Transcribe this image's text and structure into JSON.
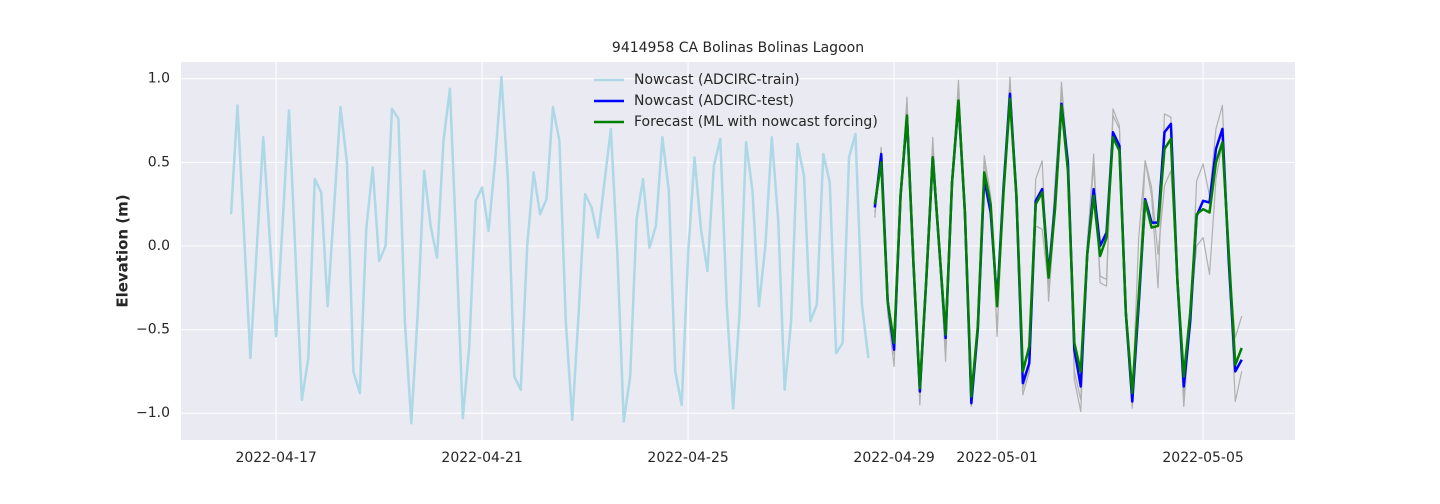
{
  "chart_data": {
    "type": "line",
    "title": "9414958 CA Bolinas Bolinas Lagoon",
    "y_label": "Elevation (m)",
    "x": [
      "2022-04-16 03:00",
      "2022-04-16 06:00",
      "2022-04-16 09:00",
      "2022-04-16 12:00",
      "2022-04-16 15:00",
      "2022-04-16 18:00",
      "2022-04-16 21:00",
      "2022-04-17 00:00",
      "2022-04-17 03:00",
      "2022-04-17 06:00",
      "2022-04-17 09:00",
      "2022-04-17 12:00",
      "2022-04-17 15:00",
      "2022-04-17 18:00",
      "2022-04-17 21:00",
      "2022-04-18 00:00",
      "2022-04-18 03:00",
      "2022-04-18 06:00",
      "2022-04-18 09:00",
      "2022-04-18 12:00",
      "2022-04-18 15:00",
      "2022-04-18 18:00",
      "2022-04-18 21:00",
      "2022-04-19 00:00",
      "2022-04-19 03:00",
      "2022-04-19 06:00",
      "2022-04-19 09:00",
      "2022-04-19 12:00",
      "2022-04-19 15:00",
      "2022-04-19 18:00",
      "2022-04-19 21:00",
      "2022-04-20 00:00",
      "2022-04-20 03:00",
      "2022-04-20 06:00",
      "2022-04-20 09:00",
      "2022-04-20 12:00",
      "2022-04-20 15:00",
      "2022-04-20 18:00",
      "2022-04-20 21:00",
      "2022-04-21 00:00",
      "2022-04-21 03:00",
      "2022-04-21 06:00",
      "2022-04-21 09:00",
      "2022-04-21 12:00",
      "2022-04-21 15:00",
      "2022-04-21 18:00",
      "2022-04-21 21:00",
      "2022-04-22 00:00",
      "2022-04-22 03:00",
      "2022-04-22 06:00",
      "2022-04-22 09:00",
      "2022-04-22 12:00",
      "2022-04-22 15:00",
      "2022-04-22 18:00",
      "2022-04-22 21:00",
      "2022-04-23 00:00",
      "2022-04-23 03:00",
      "2022-04-23 06:00",
      "2022-04-23 09:00",
      "2022-04-23 12:00",
      "2022-04-23 15:00",
      "2022-04-23 18:00",
      "2022-04-23 21:00",
      "2022-04-24 00:00",
      "2022-04-24 03:00",
      "2022-04-24 06:00",
      "2022-04-24 09:00",
      "2022-04-24 12:00",
      "2022-04-24 15:00",
      "2022-04-24 18:00",
      "2022-04-24 21:00",
      "2022-04-25 00:00",
      "2022-04-25 03:00",
      "2022-04-25 06:00",
      "2022-04-25 09:00",
      "2022-04-25 12:00",
      "2022-04-25 15:00",
      "2022-04-25 18:00",
      "2022-04-25 21:00",
      "2022-04-26 00:00",
      "2022-04-26 03:00",
      "2022-04-26 06:00",
      "2022-04-26 09:00",
      "2022-04-26 12:00",
      "2022-04-26 15:00",
      "2022-04-26 18:00",
      "2022-04-26 21:00",
      "2022-04-27 00:00",
      "2022-04-27 03:00",
      "2022-04-27 06:00",
      "2022-04-27 09:00",
      "2022-04-27 12:00",
      "2022-04-27 15:00",
      "2022-04-27 18:00",
      "2022-04-27 21:00",
      "2022-04-28 00:00",
      "2022-04-28 03:00",
      "2022-04-28 06:00",
      "2022-04-28 09:00",
      "2022-04-28 12:00",
      "2022-04-28 15:00",
      "2022-04-28 18:00",
      "2022-04-28 21:00",
      "2022-04-29 00:00",
      "2022-04-29 03:00",
      "2022-04-29 06:00",
      "2022-04-29 09:00",
      "2022-04-29 12:00",
      "2022-04-29 15:00",
      "2022-04-29 18:00",
      "2022-04-29 21:00",
      "2022-04-30 00:00",
      "2022-04-30 03:00",
      "2022-04-30 06:00",
      "2022-04-30 09:00",
      "2022-04-30 12:00",
      "2022-04-30 15:00",
      "2022-04-30 18:00",
      "2022-04-30 21:00",
      "2022-05-01 00:00",
      "2022-05-01 03:00",
      "2022-05-01 06:00",
      "2022-05-01 09:00",
      "2022-05-01 12:00",
      "2022-05-01 15:00",
      "2022-05-01 18:00",
      "2022-05-01 21:00",
      "2022-05-02 00:00",
      "2022-05-02 03:00",
      "2022-05-02 06:00",
      "2022-05-02 09:00",
      "2022-05-02 12:00",
      "2022-05-02 15:00",
      "2022-05-02 18:00",
      "2022-05-02 21:00",
      "2022-05-03 00:00",
      "2022-05-03 03:00",
      "2022-05-03 06:00",
      "2022-05-03 09:00",
      "2022-05-03 12:00",
      "2022-05-03 15:00",
      "2022-05-03 18:00",
      "2022-05-03 21:00",
      "2022-05-04 00:00",
      "2022-05-04 03:00",
      "2022-05-04 06:00",
      "2022-05-04 09:00",
      "2022-05-04 12:00",
      "2022-05-04 15:00",
      "2022-05-04 18:00",
      "2022-05-04 21:00",
      "2022-05-05 00:00",
      "2022-05-05 03:00",
      "2022-05-05 06:00",
      "2022-05-05 09:00",
      "2022-05-05 12:00",
      "2022-05-05 15:00",
      "2022-05-05 18:00"
    ],
    "series": [
      {
        "color": "#b0b0b0",
        "values": [
          null,
          null,
          null,
          null,
          null,
          null,
          null,
          null,
          null,
          null,
          null,
          null,
          null,
          null,
          null,
          null,
          null,
          null,
          null,
          null,
          null,
          null,
          null,
          null,
          null,
          null,
          null,
          null,
          null,
          null,
          null,
          null,
          null,
          null,
          null,
          null,
          null,
          null,
          null,
          null,
          null,
          null,
          null,
          null,
          null,
          null,
          null,
          null,
          null,
          null,
          null,
          null,
          null,
          null,
          null,
          null,
          null,
          null,
          null,
          null,
          null,
          null,
          null,
          null,
          null,
          null,
          null,
          null,
          null,
          null,
          null,
          null,
          null,
          null,
          null,
          null,
          null,
          null,
          null,
          null,
          null,
          null,
          null,
          null,
          null,
          null,
          null,
          null,
          null,
          null,
          null,
          null,
          null,
          null,
          null,
          null,
          null,
          null,
          null,
          null,
          0.17,
          0.59,
          -0.4,
          -0.72,
          0.3,
          0.89,
          -0.1,
          -0.95,
          -0.2,
          0.65,
          0.0,
          -0.69,
          0.38,
          0.99,
          0.2,
          -0.96,
          -0.5,
          0.54,
          0.3,
          -0.54,
          0.35,
          1.01,
          0.3,
          -0.89,
          -0.75,
          0.4,
          0.51,
          -0.33,
          0.2,
          0.98,
          0.5,
          -0.8,
          -0.99,
          0.0,
          0.55,
          -0.22,
          -0.24,
          0.82,
          0.72,
          -0.45,
          -0.97,
          -0.3,
          0.51,
          0.3,
          -0.25,
          0.79,
          0.77,
          -0.2,
          -0.96,
          -0.45,
          0.39,
          0.49,
          0.3,
          0.7,
          0.84,
          -0.1,
          -0.93,
          -0.75
        ]
      },
      {
        "color": "#b0b0b0",
        "values": [
          null,
          null,
          null,
          null,
          null,
          null,
          null,
          null,
          null,
          null,
          null,
          null,
          null,
          null,
          null,
          null,
          null,
          null,
          null,
          null,
          null,
          null,
          null,
          null,
          null,
          null,
          null,
          null,
          null,
          null,
          null,
          null,
          null,
          null,
          null,
          null,
          null,
          null,
          null,
          null,
          null,
          null,
          null,
          null,
          null,
          null,
          null,
          null,
          null,
          null,
          null,
          null,
          null,
          null,
          null,
          null,
          null,
          null,
          null,
          null,
          null,
          null,
          null,
          null,
          null,
          null,
          null,
          null,
          null,
          null,
          null,
          null,
          null,
          null,
          null,
          null,
          null,
          null,
          null,
          null,
          null,
          null,
          null,
          null,
          null,
          null,
          null,
          null,
          null,
          null,
          null,
          null,
          null,
          null,
          null,
          null,
          null,
          null,
          null,
          null,
          0.2,
          0.5,
          -0.3,
          -0.65,
          0.28,
          0.85,
          -0.12,
          -0.9,
          -0.22,
          0.6,
          0.02,
          -0.65,
          0.35,
          0.95,
          0.18,
          -0.92,
          -0.48,
          0.5,
          0.28,
          -0.5,
          0.33,
          0.97,
          0.28,
          -0.85,
          -0.72,
          0.12,
          0.1,
          -0.25,
          0.38,
          0.92,
          0.48,
          -0.75,
          -0.92,
          0.02,
          0.48,
          -0.18,
          -0.2,
          0.78,
          0.7,
          -0.42,
          -0.92,
          0.05,
          0.51,
          0.35,
          -0.05,
          0.36,
          0.45,
          -0.18,
          -0.9,
          -0.4,
          0.0,
          0.05,
          -0.17,
          0.4,
          0.62,
          -0.08,
          -0.55,
          -0.42
        ]
      },
      {
        "name": "Nowcast (ADCIRC-train)",
        "color": "#add8e6",
        "values": [
          0.19,
          0.84,
          0.08,
          -0.67,
          -0.01,
          0.65,
          0.05,
          -0.54,
          0.13,
          0.81,
          -0.05,
          -0.92,
          -0.67,
          0.4,
          0.32,
          -0.36,
          0.23,
          0.83,
          0.5,
          -0.75,
          -0.88,
          0.1,
          0.47,
          -0.09,
          0.0,
          0.82,
          0.76,
          -0.45,
          -1.06,
          -0.4,
          0.45,
          0.12,
          -0.07,
          0.63,
          0.94,
          0.0,
          -1.03,
          -0.6,
          0.27,
          0.35,
          0.09,
          0.5,
          1.01,
          0.4,
          -0.78,
          -0.86,
          0.0,
          0.44,
          0.19,
          0.28,
          0.83,
          0.63,
          -0.45,
          -1.04,
          -0.4,
          0.31,
          0.23,
          0.05,
          0.38,
          0.7,
          -0.04,
          -1.05,
          -0.78,
          0.16,
          0.4,
          -0.01,
          0.12,
          0.65,
          0.33,
          -0.75,
          -0.95,
          -0.05,
          0.53,
          0.1,
          -0.15,
          0.48,
          0.64,
          -0.35,
          -0.97,
          -0.4,
          0.62,
          0.33,
          -0.36,
          0.0,
          0.65,
          0.15,
          -0.86,
          -0.45,
          0.61,
          0.42,
          -0.45,
          -0.35,
          0.55,
          0.38,
          -0.64,
          -0.58,
          0.53,
          0.67,
          -0.35,
          -0.67,
          null,
          null,
          null,
          null,
          null,
          null,
          null,
          null,
          null,
          null,
          null,
          null,
          null,
          null,
          null,
          null,
          null,
          null,
          null,
          null,
          null,
          null,
          null,
          null,
          null,
          null,
          null,
          null,
          null,
          null,
          null,
          null,
          null,
          null,
          null,
          null,
          null,
          null,
          null,
          null,
          null,
          null,
          null,
          null,
          null,
          null,
          null,
          null,
          null,
          null,
          null,
          null,
          null,
          null,
          null,
          null,
          null,
          null
        ]
      },
      {
        "name": "Nowcast (ADCIRC-test)",
        "color": "#0000ff",
        "values": [
          null,
          null,
          null,
          null,
          null,
          null,
          null,
          null,
          null,
          null,
          null,
          null,
          null,
          null,
          null,
          null,
          null,
          null,
          null,
          null,
          null,
          null,
          null,
          null,
          null,
          null,
          null,
          null,
          null,
          null,
          null,
          null,
          null,
          null,
          null,
          null,
          null,
          null,
          null,
          null,
          null,
          null,
          null,
          null,
          null,
          null,
          null,
          null,
          null,
          null,
          null,
          null,
          null,
          null,
          null,
          null,
          null,
          null,
          null,
          null,
          null,
          null,
          null,
          null,
          null,
          null,
          null,
          null,
          null,
          null,
          null,
          null,
          null,
          null,
          null,
          null,
          null,
          null,
          null,
          null,
          null,
          null,
          null,
          null,
          null,
          null,
          null,
          null,
          null,
          null,
          null,
          null,
          null,
          null,
          null,
          null,
          null,
          null,
          null,
          null,
          0.23,
          0.55,
          -0.33,
          -0.62,
          0.3,
          0.77,
          -0.1,
          -0.87,
          -0.2,
          0.53,
          0.0,
          -0.55,
          0.38,
          0.86,
          0.2,
          -0.94,
          -0.5,
          0.4,
          0.2,
          -0.33,
          0.35,
          0.91,
          0.3,
          -0.82,
          -0.7,
          0.27,
          0.34,
          -0.17,
          0.25,
          0.85,
          0.5,
          -0.62,
          -0.84,
          -0.05,
          0.34,
          0.0,
          0.08,
          0.68,
          0.6,
          -0.4,
          -0.93,
          -0.35,
          0.28,
          0.14,
          0.14,
          0.68,
          0.73,
          -0.2,
          -0.84,
          -0.45,
          0.18,
          0.27,
          0.26,
          0.58,
          0.7,
          -0.1,
          -0.75,
          -0.68
        ]
      },
      {
        "name": "Forecast (ML with nowcast forcing)",
        "color": "#008000",
        "values": [
          null,
          null,
          null,
          null,
          null,
          null,
          null,
          null,
          null,
          null,
          null,
          null,
          null,
          null,
          null,
          null,
          null,
          null,
          null,
          null,
          null,
          null,
          null,
          null,
          null,
          null,
          null,
          null,
          null,
          null,
          null,
          null,
          null,
          null,
          null,
          null,
          null,
          null,
          null,
          null,
          null,
          null,
          null,
          null,
          null,
          null,
          null,
          null,
          null,
          null,
          null,
          null,
          null,
          null,
          null,
          null,
          null,
          null,
          null,
          null,
          null,
          null,
          null,
          null,
          null,
          null,
          null,
          null,
          null,
          null,
          null,
          null,
          null,
          null,
          null,
          null,
          null,
          null,
          null,
          null,
          null,
          null,
          null,
          null,
          null,
          null,
          null,
          null,
          null,
          null,
          null,
          null,
          null,
          null,
          null,
          null,
          null,
          null,
          null,
          null,
          0.25,
          0.5,
          -0.33,
          -0.58,
          0.3,
          0.78,
          -0.1,
          -0.85,
          -0.2,
          0.53,
          0.0,
          -0.53,
          0.38,
          0.87,
          0.2,
          -0.9,
          -0.48,
          0.44,
          0.25,
          -0.36,
          0.32,
          0.88,
          0.3,
          -0.75,
          -0.6,
          0.25,
          0.32,
          -0.19,
          0.22,
          0.84,
          0.45,
          -0.58,
          -0.75,
          -0.05,
          0.3,
          -0.06,
          0.05,
          0.65,
          0.57,
          -0.4,
          -0.88,
          -0.3,
          0.27,
          0.11,
          0.12,
          0.58,
          0.64,
          -0.2,
          -0.78,
          -0.4,
          0.19,
          0.22,
          0.2,
          0.5,
          0.62,
          -0.05,
          -0.71,
          -0.61
        ]
      }
    ],
    "xlim": [
      "2022-04-15 03:40",
      "2022-05-06 18:50"
    ],
    "xticks": [
      "2022-04-17",
      "2022-04-21",
      "2022-04-25",
      "2022-04-29",
      "2022-05-01",
      "2022-05-05"
    ],
    "ylim": [
      -1.16,
      1.1
    ],
    "yticks": [
      {
        "value": -1.0,
        "label": "−1.0"
      },
      {
        "value": -0.5,
        "label": "−0.5"
      },
      {
        "value": 0.0,
        "label": "0.0"
      },
      {
        "value": 0.5,
        "label": "0.5"
      },
      {
        "value": 1.0,
        "label": "1.0"
      }
    ],
    "grid": true,
    "legend": "upper center"
  }
}
